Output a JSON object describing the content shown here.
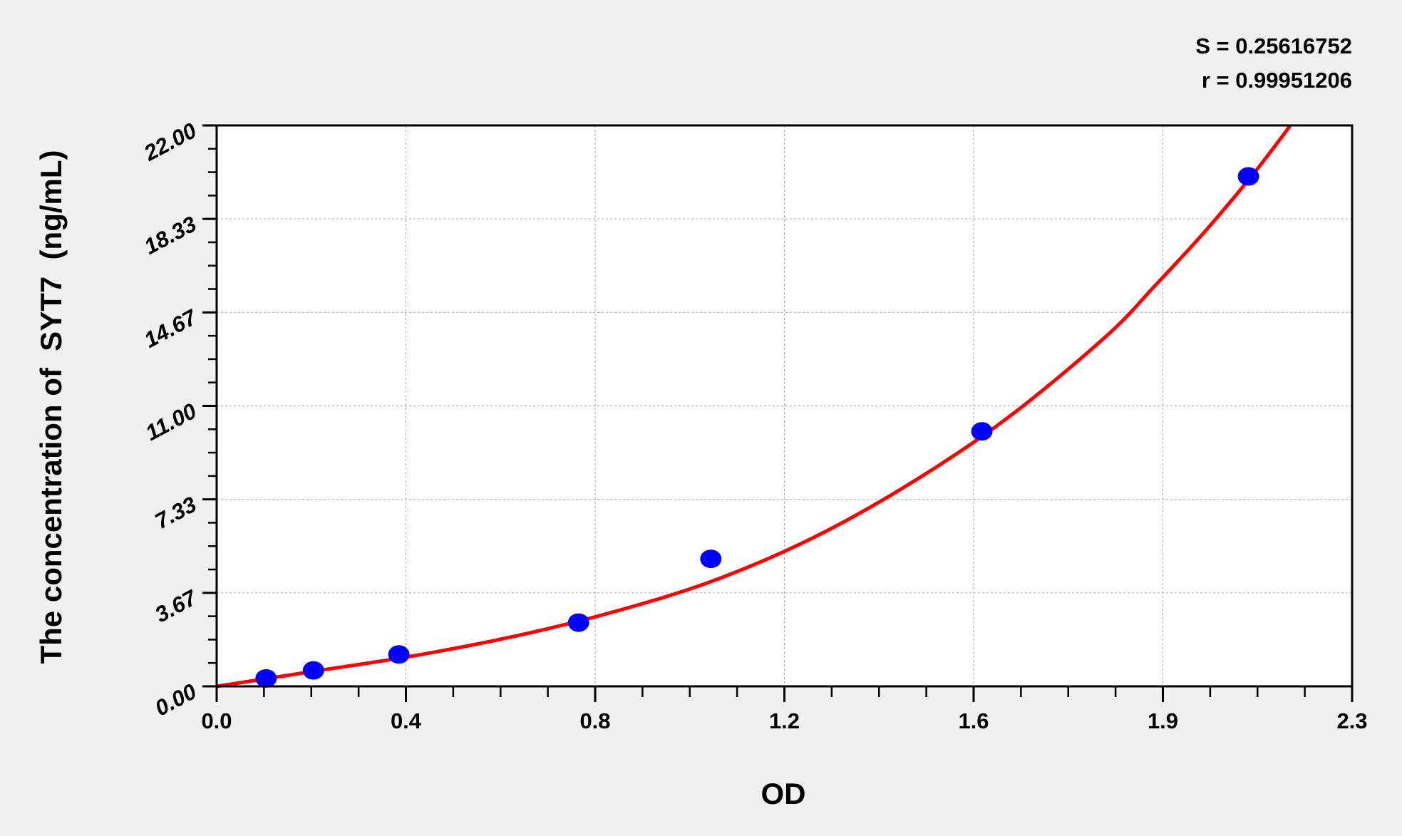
{
  "chart_data": {
    "type": "scatter",
    "title": "",
    "xlabel": "OD",
    "ylabel": "The concentration of  SYT7  (ng/mL)",
    "xlim": [
      0,
      2.3
    ],
    "ylim": [
      0,
      22
    ],
    "x_tick_labels": [
      "0.0",
      "0.4",
      "0.8",
      "1.2",
      "1.6",
      "1.9",
      "2.3"
    ],
    "y_tick_labels": [
      "0.00",
      "3.67",
      "7.33",
      "11.00",
      "14.67",
      "18.33",
      "22.00"
    ],
    "grid": true,
    "stats": [
      "S = 0.25616752",
      "r = 0.99951206"
    ],
    "points": {
      "color": "#0000ff",
      "x": [
        0.1,
        0.196,
        0.369,
        0.733,
        1.001,
        1.55,
        2.09
      ],
      "y": [
        0.312,
        0.625,
        1.25,
        2.5,
        5,
        10,
        20
      ]
    },
    "fit_curve": {
      "color": "#ff0000",
      "x": [
        0,
        0.2,
        0.4,
        0.6,
        0.8,
        1.0,
        1.2,
        1.4,
        1.6,
        1.8,
        1.9,
        2.0,
        2.1,
        2.175
      ],
      "y": [
        0,
        0.6,
        1.2,
        1.95,
        2.9,
        4.1,
        5.75,
        7.9,
        10.5,
        13.7,
        15.7,
        17.8,
        20.1,
        22
      ]
    }
  }
}
